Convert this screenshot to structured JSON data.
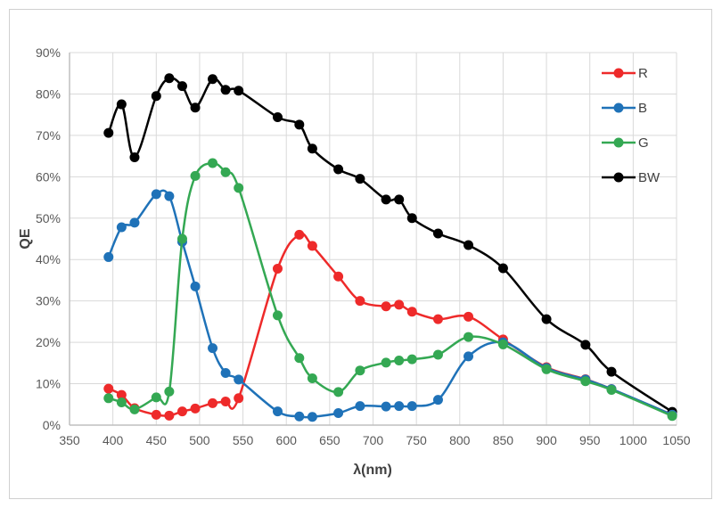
{
  "chart_data": {
    "type": "line",
    "title": "",
    "xlabel": "λ(nm)",
    "ylabel": "QE",
    "xlim": [
      350,
      1050
    ],
    "ylim": [
      0,
      90
    ],
    "x_ticks": [
      "350",
      "400",
      "450",
      "500",
      "550",
      "600",
      "650",
      "700",
      "750",
      "800",
      "850",
      "900",
      "950",
      "1000",
      "1050"
    ],
    "y_ticks": [
      "0%",
      "10%",
      "20%",
      "30%",
      "40%",
      "50%",
      "60%",
      "70%",
      "80%",
      "90%"
    ],
    "grid": true,
    "legend_position": "top-right",
    "x": [
      395,
      410,
      425,
      450,
      465,
      480,
      495,
      515,
      530,
      545,
      590,
      615,
      630,
      660,
      685,
      715,
      730,
      745,
      775,
      810,
      850,
      900,
      945,
      975,
      1045
    ],
    "series": [
      {
        "name": "R",
        "color": "#ee2a2a",
        "values": [
          8.8,
          7.3,
          4.1,
          2.5,
          2.3,
          3.3,
          4.0,
          5.3,
          5.7,
          6.5,
          37.8,
          46.0,
          43.3,
          35.9,
          30.0,
          28.7,
          29.1,
          27.4,
          25.6,
          26.2,
          20.7,
          14.0,
          11.1,
          8.7,
          2.5
        ]
      },
      {
        "name": "B",
        "color": "#1f72b8",
        "values": [
          40.6,
          47.8,
          48.9,
          55.8,
          55.3,
          44.3,
          33.5,
          18.6,
          12.6,
          11.0,
          3.3,
          2.1,
          2.0,
          2.9,
          4.6,
          4.5,
          4.6,
          4.6,
          6.1,
          16.6,
          20.0,
          13.8,
          11.0,
          8.7,
          2.5
        ]
      },
      {
        "name": "G",
        "color": "#34a853",
        "values": [
          6.5,
          5.5,
          3.8,
          6.7,
          8.1,
          45.0,
          60.2,
          63.3,
          61.1,
          57.3,
          26.5,
          16.2,
          11.3,
          8.0,
          13.2,
          15.1,
          15.6,
          15.9,
          17.0,
          21.3,
          19.5,
          13.5,
          10.6,
          8.5,
          2.2
        ]
      },
      {
        "name": "BW",
        "color": "#000000",
        "values": [
          70.6,
          77.5,
          64.7,
          79.5,
          83.8,
          81.9,
          76.7,
          83.6,
          81.0,
          80.8,
          74.4,
          72.6,
          66.8,
          61.8,
          59.5,
          54.5,
          54.5,
          50.0,
          46.3,
          43.5,
          37.9,
          25.6,
          19.4,
          12.9,
          3.2
        ]
      }
    ]
  }
}
